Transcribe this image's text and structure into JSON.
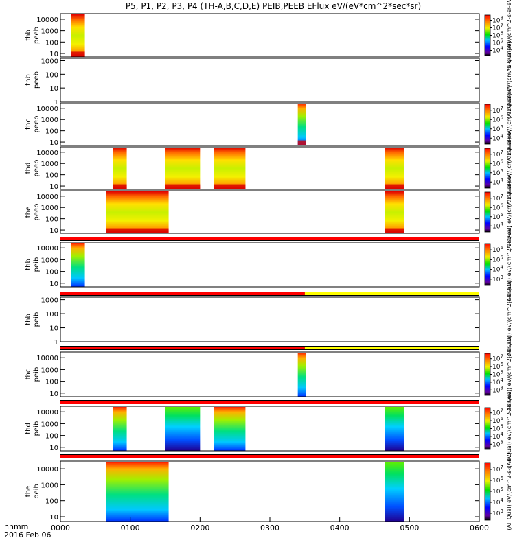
{
  "chart_data": {
    "type": "heatmap",
    "title": "P5, P1, P2, P3, P4 (TH-A,B,C,D,E) PEIB,PEEB EFlux eV/(eV*cm^2*sec*sr)",
    "x_ticks": [
      "0000",
      "0100",
      "0200",
      "0300",
      "0400",
      "0500",
      "0600"
    ],
    "x_range_hours": [
      0,
      6
    ],
    "x_label_left": "hhmm",
    "x_date": "2016 Feb 06",
    "y_scale": "log",
    "panels": [
      {
        "label": [
          "thb",
          "peeb"
        ],
        "ylim": [
          5,
          30000
        ],
        "yticks": [
          "10",
          "100",
          "1000",
          "10000"
        ],
        "cbar_ticks": [
          "10^4",
          "10^5",
          "10^6",
          "10^7",
          "10^8"
        ],
        "cbar_label": "(All Qual) eV/(cm^2-s-sr-eV)",
        "data_blocks": [
          [
            0.15,
            0.35
          ]
        ],
        "status_bar": null
      },
      {
        "label": [
          "thb",
          "peeb"
        ],
        "ylim": [
          1,
          1500
        ],
        "yticks": [
          "1",
          "10",
          "100",
          "1000"
        ],
        "cbar_ticks": [],
        "cbar_label": "(All Qual) eV/(cm^2-s-sr-eV)",
        "data_blocks": [],
        "status_bar": null
      },
      {
        "label": [
          "thc",
          "peeb"
        ],
        "ylim": [
          5,
          30000
        ],
        "yticks": [
          "10",
          "100",
          "1000",
          "10000"
        ],
        "cbar_ticks": [
          "10^4",
          "10^5",
          "10^6",
          "10^7"
        ],
        "cbar_label": "(All Qual) eV/(cm^2-s-sr-eV)",
        "data_blocks": [
          [
            3.4,
            3.52
          ]
        ],
        "status_bar": null
      },
      {
        "label": [
          "thd",
          "peeb"
        ],
        "ylim": [
          5,
          30000
        ],
        "yticks": [
          "10",
          "100",
          "1000",
          "10000"
        ],
        "cbar_ticks": [
          "10^4",
          "10^5",
          "10^6",
          "10^7"
        ],
        "cbar_label": "(All Qual) eV/(cm^2-s-sr-eV)",
        "data_blocks": [
          [
            0.75,
            0.95
          ],
          [
            1.5,
            2.0
          ],
          [
            2.2,
            2.65
          ],
          [
            4.65,
            4.92
          ]
        ],
        "status_bar": null
      },
      {
        "label": [
          "the",
          "peeb"
        ],
        "ylim": [
          5,
          30000
        ],
        "yticks": [
          "10",
          "100",
          "1000",
          "10000"
        ],
        "cbar_ticks": [
          "10^4",
          "10^5",
          "10^6",
          "10^7"
        ],
        "cbar_label": "(All Qual) eV/(cm^2-s-sr-eV)",
        "data_blocks": [
          [
            0.65,
            1.55
          ],
          [
            4.65,
            4.92
          ]
        ],
        "status_bar": null
      },
      {
        "label": [
          "thb",
          "peib"
        ],
        "ylim": [
          5,
          30000
        ],
        "yticks": [
          "10",
          "100",
          "1000",
          "10000"
        ],
        "cbar_ticks": [
          "10^3",
          "10^4",
          "10^5",
          "10^6"
        ],
        "cbar_label": "(All Qual) eV/(cm^2-s-sr-eV)",
        "data_blocks": [
          [
            0.15,
            0.35
          ]
        ],
        "status_bar": [
          {
            "from": 0,
            "to": 6,
            "color": "#ff0000"
          }
        ]
      },
      {
        "label": [
          "thb",
          "peib"
        ],
        "ylim": [
          1,
          1500
        ],
        "yticks": [
          "1",
          "10",
          "100",
          "1000"
        ],
        "cbar_ticks": [],
        "cbar_label": "(All Qual) eV/(cm^2-s-sr-eV)",
        "data_blocks": [],
        "status_bar": [
          {
            "from": 0,
            "to": 3.5,
            "color": "#ff0000"
          },
          {
            "from": 3.5,
            "to": 6,
            "color": "#ffff00"
          }
        ]
      },
      {
        "label": [
          "thc",
          "peib"
        ],
        "ylim": [
          5,
          30000
        ],
        "yticks": [
          "10",
          "100",
          "1000",
          "10000"
        ],
        "cbar_ticks": [
          "10^3",
          "10^4",
          "10^5",
          "10^6",
          "10^7"
        ],
        "cbar_label": "(All Qual) eV/(cm^2-s-sr-eV)",
        "data_blocks": [
          [
            3.4,
            3.52
          ]
        ],
        "status_bar": [
          {
            "from": 0,
            "to": 3.5,
            "color": "#ff0000"
          },
          {
            "from": 3.5,
            "to": 6,
            "color": "#ffff00"
          }
        ]
      },
      {
        "label": [
          "thd",
          "peib"
        ],
        "ylim": [
          5,
          30000
        ],
        "yticks": [
          "10",
          "100",
          "1000",
          "10000"
        ],
        "cbar_ticks": [
          "10^3",
          "10^4",
          "10^5",
          "10^6",
          "10^7"
        ],
        "cbar_label": "(All Qual) eV/(cm^2-s-sr-eV)",
        "data_blocks": [
          [
            0.75,
            0.95
          ],
          [
            1.5,
            2.0
          ],
          [
            2.2,
            2.65
          ],
          [
            4.65,
            4.92
          ]
        ],
        "status_bar": [
          {
            "from": 0,
            "to": 6,
            "color": "#ff0000"
          }
        ]
      },
      {
        "label": [
          "the",
          "peib"
        ],
        "ylim": [
          5,
          30000
        ],
        "yticks": [
          "10",
          "100",
          "1000",
          "10000"
        ],
        "cbar_ticks": [
          "10^3",
          "10^4",
          "10^5",
          "10^6",
          "10^7"
        ],
        "cbar_label": "(All Qual) eV/(cm^2-s-sr-eV)",
        "data_blocks": [
          [
            0.65,
            1.55
          ],
          [
            4.65,
            4.92
          ]
        ],
        "status_bar": [
          {
            "from": 0,
            "to": 6,
            "color": "#ff0000"
          }
        ]
      }
    ]
  }
}
